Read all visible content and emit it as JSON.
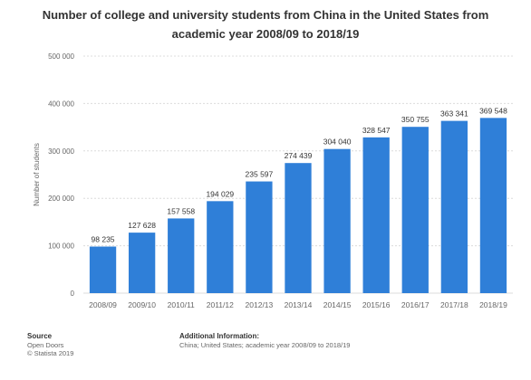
{
  "title": "Number of college and university students from China in the United States from academic year 2008/09 to 2018/19",
  "colors": {
    "bar": "#2f7fd8",
    "grid": "#dcdcdc",
    "axis_text": "#666666",
    "label_text": "#333333"
  },
  "chart_data": {
    "type": "bar",
    "title": "Number of college and university students from China in the United States from academic year 2008/09 to 2018/19",
    "xlabel": "",
    "ylabel": "Number of students",
    "categories": [
      "2008/09",
      "2009/10",
      "2010/11",
      "2011/12",
      "2012/13",
      "2013/14",
      "2014/15",
      "2015/16",
      "2016/17",
      "2017/18",
      "2018/19"
    ],
    "values": [
      98235,
      127628,
      157558,
      194029,
      235597,
      274439,
      304040,
      328547,
      350755,
      363341,
      369548
    ],
    "value_labels": [
      "98 235",
      "127 628",
      "157 558",
      "194 029",
      "235 597",
      "274 439",
      "304 040",
      "328 547",
      "350 755",
      "363 341",
      "369 548"
    ],
    "ylim": [
      0,
      500000
    ],
    "yticks": [
      0,
      100000,
      200000,
      300000,
      400000,
      500000
    ],
    "ytick_labels": [
      "0",
      "100 000",
      "200 000",
      "300 000",
      "400 000",
      "500 000"
    ],
    "grid": true,
    "legend": "none"
  },
  "footer": {
    "source_heading": "Source",
    "source_line1": "Open Doors",
    "source_line2": "© Statista 2019",
    "info_heading": "Additional Information:",
    "info_line1": "China; United States; academic year 2008/09 to 2018/19"
  }
}
